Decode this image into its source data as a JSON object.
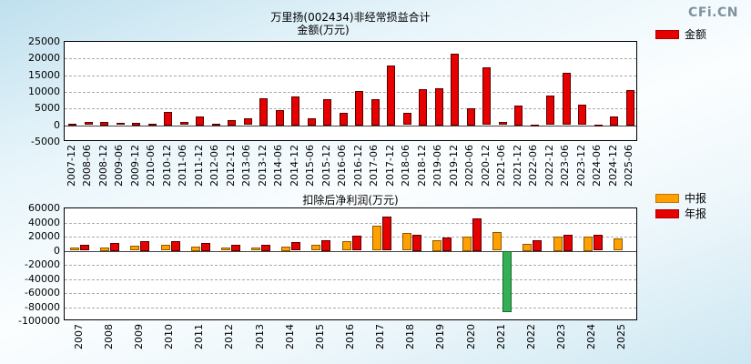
{
  "logo": {
    "brand": "CFi.CN"
  },
  "chart_data": [
    {
      "type": "bar",
      "title": "万里扬(002434)非经常损益合计",
      "subtitle": "金额(万元)",
      "legend": [
        {
          "label": "金额",
          "color": "#e60000"
        }
      ],
      "legend_position": "right",
      "grid": true,
      "ylim": [
        -5000,
        25000
      ],
      "yticks": [
        25000,
        20000,
        15000,
        10000,
        5000,
        0,
        -5000
      ],
      "bar_color": "#e60000",
      "bar_border": "#5a0000",
      "categories": [
        "2007-12",
        "2008-06",
        "2008-12",
        "2009-06",
        "2009-12",
        "2010-06",
        "2010-12",
        "2011-06",
        "2011-12",
        "2012-06",
        "2012-12",
        "2013-06",
        "2013-12",
        "2014-06",
        "2014-12",
        "2015-06",
        "2015-12",
        "2016-06",
        "2016-12",
        "2017-06",
        "2017-12",
        "2018-06",
        "2018-12",
        "2019-06",
        "2019-12",
        "2020-06",
        "2020-12",
        "2021-06",
        "2021-12",
        "2022-06",
        "2022-12",
        "2023-06",
        "2023-12",
        "2024-06",
        "2024-12",
        "2025-06"
      ],
      "values": [
        400,
        900,
        1000,
        600,
        800,
        500,
        4000,
        900,
        2600,
        400,
        1600,
        2000,
        8100,
        4600,
        8600,
        2100,
        7800,
        3700,
        10300,
        7800,
        18000,
        3600,
        10800,
        11200,
        21500,
        5100,
        17300,
        900,
        6000,
        300,
        8800,
        15600,
        6100,
        200,
        2600,
        10600
      ]
    },
    {
      "type": "bar",
      "title": "扣除后净利润(万元)",
      "legend": [
        {
          "label": "中报",
          "color": "#ffa000"
        },
        {
          "label": "年报",
          "color": "#e60000"
        }
      ],
      "legend_position": "right",
      "grid": true,
      "ylim": [
        -100000,
        60000
      ],
      "yticks": [
        60000,
        40000,
        20000,
        0,
        -20000,
        -40000,
        -60000,
        -80000,
        -100000
      ],
      "categories": [
        "2007",
        "2008",
        "2009",
        "2010",
        "2011",
        "2012",
        "2013",
        "2014",
        "2015",
        "2016",
        "2017",
        "2018",
        "2019",
        "2020",
        "2021",
        "2022",
        "2023",
        "2024",
        "2025"
      ],
      "series": [
        {
          "name": "中报",
          "color": "#ffa000",
          "border": "#8a5a00",
          "values": [
            4000,
            5000,
            7000,
            8000,
            6000,
            4000,
            4500,
            6000,
            8000,
            13000,
            35000,
            25000,
            15000,
            20000,
            26000,
            10000,
            20000,
            20000,
            17000
          ]
        },
        {
          "name": "年报",
          "color": "#e60000",
          "border": "#5a0000",
          "negative_color": "#33b054",
          "negative_border": "#176b30",
          "values": [
            8000,
            11000,
            14000,
            14000,
            11000,
            9000,
            8500,
            12000,
            15000,
            21000,
            48000,
            23000,
            19000,
            46000,
            -86000,
            15000,
            23000,
            22000,
            null
          ]
        }
      ]
    }
  ]
}
